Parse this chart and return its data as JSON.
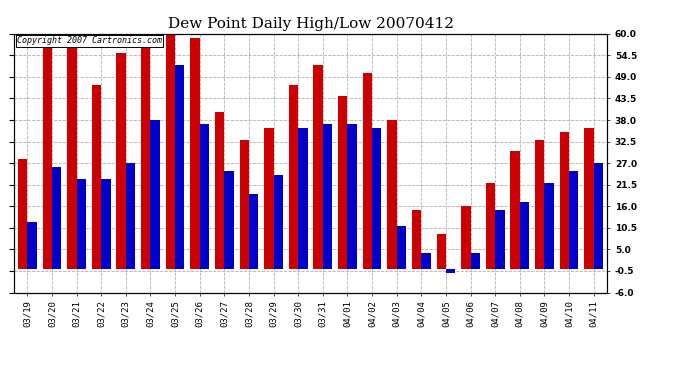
{
  "title": "Dew Point Daily High/Low 20070412",
  "copyright_text": "Copyright 2007 Cartronics.com",
  "dates": [
    "03/19",
    "03/20",
    "03/21",
    "03/22",
    "03/23",
    "03/24",
    "03/25",
    "03/26",
    "03/27",
    "03/28",
    "03/29",
    "03/30",
    "03/31",
    "04/01",
    "04/02",
    "04/03",
    "04/04",
    "04/05",
    "04/06",
    "04/07",
    "04/08",
    "04/09",
    "04/10",
    "04/11"
  ],
  "highs": [
    28,
    59,
    59,
    47,
    55,
    61,
    61,
    59,
    40,
    33,
    36,
    47,
    52,
    44,
    50,
    38,
    15,
    9,
    16,
    22,
    30,
    33,
    35,
    36
  ],
  "lows": [
    12,
    26,
    23,
    23,
    27,
    38,
    52,
    37,
    25,
    19,
    24,
    36,
    37,
    37,
    36,
    11,
    4,
    -1,
    4,
    15,
    17,
    22,
    25,
    27
  ],
  "high_color": "#cc0000",
  "low_color": "#0000cc",
  "ylim_min": -6.0,
  "ylim_max": 60.0,
  "yticks": [
    -6.0,
    -0.5,
    5.0,
    10.5,
    16.0,
    21.5,
    27.0,
    32.5,
    38.0,
    43.5,
    49.0,
    54.5,
    60.0
  ],
  "background_color": "#ffffff",
  "plot_bg_color": "#ffffff",
  "grid_color": "#b0b0b0",
  "bar_width": 0.38,
  "title_fontsize": 11,
  "tick_fontsize": 6.5,
  "copyright_fontsize": 6,
  "figwidth": 6.9,
  "figheight": 3.75,
  "dpi": 100
}
